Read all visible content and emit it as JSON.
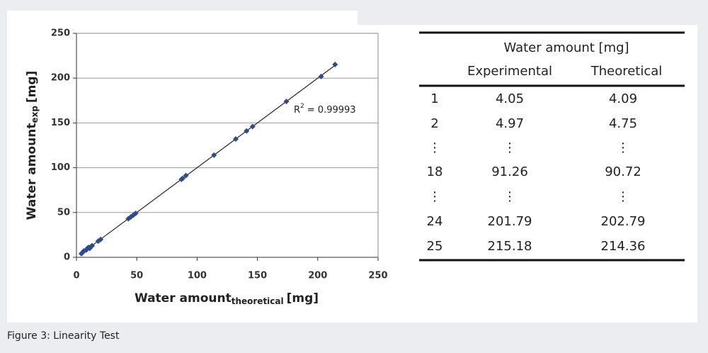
{
  "chart_data": {
    "type": "scatter",
    "x_label": {
      "main": "Water amount",
      "sub": "theoretical",
      "unit": "[mg]"
    },
    "y_label": {
      "main": "Water amount",
      "sub": "exp",
      "unit": "[mg]"
    },
    "annotation": {
      "main": "R",
      "sup": "2",
      "rest": "= 0.99993"
    },
    "color": "#2f4b8f",
    "grid": true,
    "xlim": [
      0,
      250
    ],
    "ylim": [
      0,
      250
    ],
    "xticks": [
      0,
      50,
      100,
      150,
      200,
      250
    ],
    "yticks": [
      0,
      50,
      100,
      150,
      200,
      250
    ],
    "x": [
      4.09,
      4.75,
      6,
      8,
      9,
      10,
      11,
      12,
      13,
      18,
      20,
      43,
      45,
      47,
      49,
      87,
      88,
      90.72,
      114,
      132,
      141,
      146,
      174,
      202.79,
      214.36
    ],
    "values": [
      4.05,
      4.97,
      7,
      8,
      10,
      11,
      10,
      12,
      13,
      18,
      20,
      43,
      45,
      47,
      49,
      87,
      88,
      91.26,
      114,
      132,
      141,
      146,
      174,
      201.79,
      215.18
    ]
  },
  "table": {
    "group_header": "Water amount [mg]",
    "columns": [
      "Experimental",
      "Theoretical"
    ],
    "rows": [
      [
        "1",
        "4.05",
        "4.09"
      ],
      [
        "2",
        "4.97",
        "4.75"
      ],
      [
        "⋮",
        "⋮",
        "⋮"
      ],
      [
        "18",
        "91.26",
        "90.72"
      ],
      [
        "⋮",
        "⋮",
        "⋮"
      ],
      [
        "24",
        "201.79",
        "202.79"
      ],
      [
        "25",
        "215.18",
        "214.36"
      ]
    ]
  },
  "caption": "Figure 3: Linearity Test"
}
